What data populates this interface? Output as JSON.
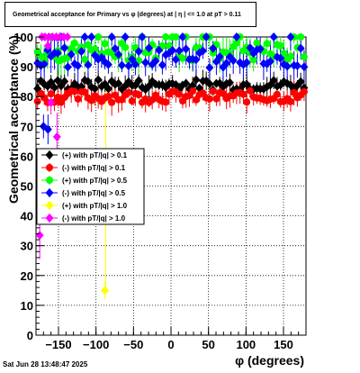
{
  "page": {
    "title": "Geometrical acceptance for Primary vs φ (degrees) at |  η  | <= 1.0 at pT > 0.11",
    "timestamp": "Sat Jun 28 13:48:47 2025"
  },
  "chart_data": {
    "type": "scatter",
    "title": "Geometrical acceptance for Primary vs φ (degrees) at |  η  | <= 1.0 at pT > 0.11",
    "xlabel": "φ (degrees)",
    "ylabel": "Geometrical acceptance (%)",
    "xlim": [
      -180,
      180
    ],
    "ylim": [
      0,
      100
    ],
    "x_ticks": [
      -150,
      -100,
      -50,
      0,
      50,
      100,
      150
    ],
    "y_ticks": [
      0,
      10,
      20,
      30,
      40,
      50,
      60,
      70,
      80,
      90,
      100
    ],
    "grid": true,
    "legend_position": "middle-left",
    "series": [
      {
        "name": "(+) with pT/|q| > 0.1",
        "color": "#000000",
        "marker": "diamond",
        "baseline": 84,
        "spread": 1.8,
        "err": 2.5
      },
      {
        "name": "(-) with pT/|q| > 0.1",
        "color": "#ff0000",
        "marker": "circle",
        "baseline": 80,
        "spread": 2.0,
        "err": 3.0
      },
      {
        "name": "(+) with pT/|q| > 0.5",
        "color": "#00ff00",
        "marker": "circle",
        "baseline": 95,
        "spread": 3.0,
        "err": 4.0
      },
      {
        "name": "(-) with pT/|q| > 0.5",
        "color": "#0000ff",
        "marker": "diamond",
        "baseline": 93,
        "spread": 3.5,
        "err": 4.0
      },
      {
        "name": "(+) with pT/|q| > 1.0",
        "color": "#ffff00",
        "marker": "diamond",
        "baseline": 100,
        "spread": 0,
        "err": 0
      },
      {
        "name": "(-) with pT/|q| > 1.0",
        "color": "#ff00ff",
        "marker": "diamond",
        "baseline": 100,
        "spread": 0,
        "err": 0
      }
    ],
    "special_points": [
      {
        "series": "(+) with pT/|q| > 1.0",
        "x": -87,
        "y": 50,
        "err_low": 35,
        "err_high": 35
      },
      {
        "series": "(-) with pT/|q| > 1.0",
        "x": -175,
        "y": 33.5,
        "err_low": 8,
        "err_high": 8
      },
      {
        "series": "(-) with pT/|q| > 1.0",
        "x": -152,
        "y": 66.5,
        "err_low": 6,
        "err_high": 8
      },
      {
        "series": "(-) with pT/|q| > 1.0",
        "x": -160,
        "y": 78,
        "err_low": 4,
        "err_high": 5
      },
      {
        "series": "(-) with pT/|q| > 1.0",
        "x": -164,
        "y": 97,
        "err_low": 3,
        "err_high": 3
      },
      {
        "series": "(-) with pT/|q| > 0.5",
        "x": -164,
        "y": 69,
        "err_low": 5,
        "err_high": 5
      },
      {
        "series": "(-) with pT/|q| > 0.5",
        "x": -170,
        "y": 70,
        "err_low": 4,
        "err_high": 4
      },
      {
        "series": "(+) with pT/|q| > 0.5",
        "x": -150,
        "y": 92,
        "err_low": 5,
        "err_high": 5
      },
      {
        "series": "(+) with pT/|q| > 1.0",
        "x": -88,
        "y": 15,
        "err_low": 3,
        "err_high": 3
      }
    ]
  }
}
